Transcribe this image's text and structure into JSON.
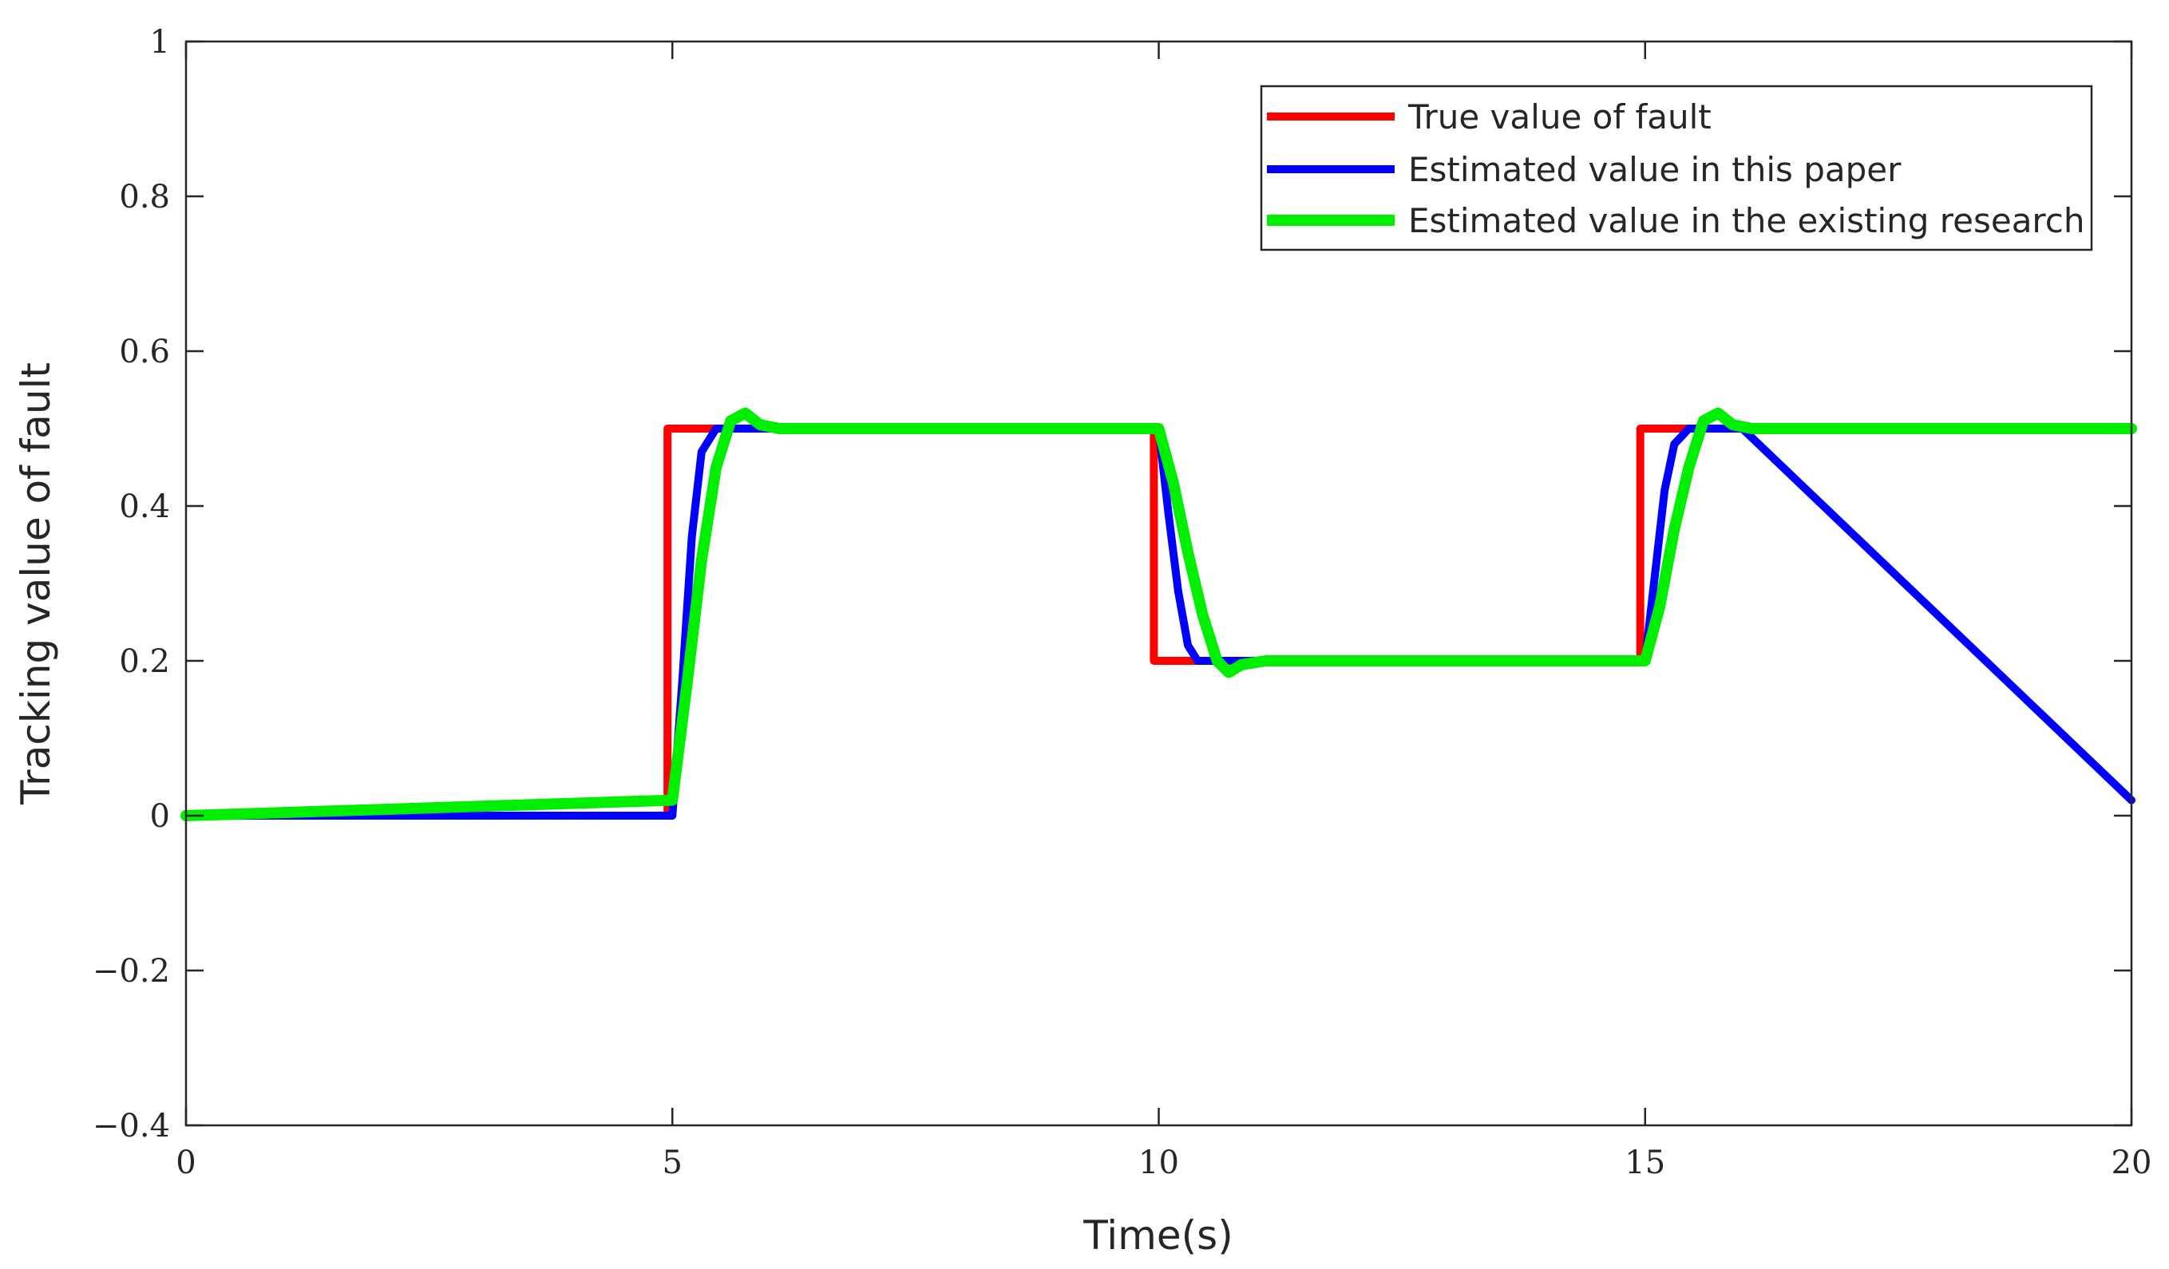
{
  "chart_data": {
    "type": "line",
    "title": "",
    "xlabel": "Time(s)",
    "ylabel": "Tracking value of fault",
    "xlim": [
      0,
      20
    ],
    "ylim": [
      -0.4,
      1
    ],
    "grid": false,
    "legend_position": "top-right",
    "x_ticks": [
      "0",
      "5",
      "10",
      "15",
      "20"
    ],
    "y_ticks": [
      "−0.4",
      "−0.2",
      "0",
      "0.2",
      "0.4",
      "0.6",
      "0.8",
      "1"
    ],
    "series": [
      {
        "name": "True value of fault",
        "color": "#ff0000",
        "x": [
          0,
          4.95,
          4.95,
          9.95,
          9.95,
          14.95,
          14.95,
          20
        ],
        "y": [
          0,
          0,
          0.5,
          0.5,
          0.2,
          0.2,
          0.5,
          0.5
        ]
      },
      {
        "name": "Estimated value in this paper",
        "color": "#0000ff",
        "x": [
          0,
          5.0,
          5.1,
          5.2,
          5.3,
          5.45,
          6,
          10,
          10.1,
          10.2,
          10.3,
          10.4,
          11,
          15,
          15.1,
          15.2,
          15.3,
          15.45,
          16,
          20
        ],
        "y": [
          0,
          0,
          0.17,
          0.36,
          0.47,
          0.5,
          0.5,
          0.5,
          0.39,
          0.29,
          0.22,
          0.2,
          0.2,
          0.2,
          0.31,
          0.42,
          0.48,
          0.5,
          0.5,
          0.02
        ]
      },
      {
        "name": "Estimated value in the existing research",
        "color": "#00ee00",
        "x": [
          0,
          5.0,
          5.15,
          5.3,
          5.45,
          5.6,
          5.75,
          5.9,
          6.1,
          6.5,
          10,
          10.15,
          10.3,
          10.45,
          10.6,
          10.72,
          10.85,
          11.1,
          11.5,
          15,
          15.15,
          15.3,
          15.45,
          15.6,
          15.75,
          15.9,
          16.1,
          16.5,
          20
        ],
        "y": [
          0,
          0.02,
          0.17,
          0.33,
          0.45,
          0.51,
          0.52,
          0.505,
          0.5,
          0.5,
          0.5,
          0.43,
          0.34,
          0.26,
          0.2,
          0.185,
          0.195,
          0.2,
          0.2,
          0.2,
          0.27,
          0.37,
          0.45,
          0.51,
          0.52,
          0.505,
          0.5,
          0.5,
          0.5
        ]
      }
    ]
  }
}
